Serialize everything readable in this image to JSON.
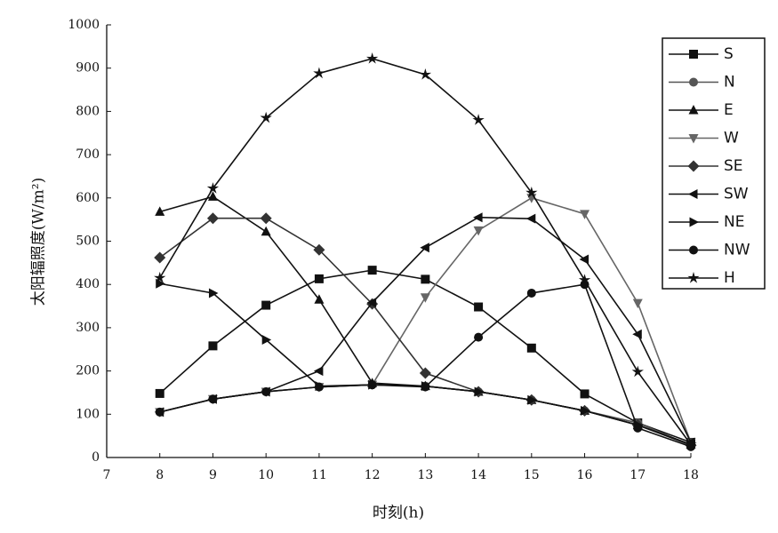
{
  "chart_data": {
    "type": "line",
    "x_label": "时刻(h)",
    "y_label": "太阳辐照度(W/m²)",
    "x": [
      8,
      9,
      10,
      11,
      12,
      13,
      14,
      15,
      16,
      17,
      18
    ],
    "xlim": [
      7,
      18
    ],
    "xticks": [
      7,
      8,
      9,
      10,
      11,
      12,
      13,
      14,
      15,
      16,
      17,
      18
    ],
    "ylim": [
      0,
      1000
    ],
    "yticks": [
      0,
      100,
      200,
      300,
      400,
      500,
      600,
      700,
      800,
      900,
      1000
    ],
    "legend": "upper right",
    "series": [
      {
        "name": "S",
        "color": "#111111",
        "marker": "square",
        "values": [
          148,
          258,
          352,
          413,
          433,
          412,
          348,
          253,
          147,
          80,
          35
        ]
      },
      {
        "name": "N",
        "color": "#555555",
        "marker": "circle",
        "values": [
          105,
          135,
          152,
          163,
          168,
          165,
          152,
          133,
          108,
          80,
          28
        ]
      },
      {
        "name": "E",
        "color": "#111111",
        "marker": "triangle-up",
        "values": [
          568,
          603,
          522,
          365,
          172,
          165,
          152,
          133,
          108,
          75,
          30
        ]
      },
      {
        "name": "W",
        "color": "#666666",
        "marker": "triangle-down",
        "values": [
          105,
          135,
          152,
          163,
          168,
          370,
          525,
          600,
          563,
          357,
          35
        ]
      },
      {
        "name": "SE",
        "color": "#333333",
        "marker": "diamond",
        "values": [
          462,
          553,
          553,
          480,
          355,
          195,
          152,
          133,
          108,
          75,
          28
        ]
      },
      {
        "name": "SW",
        "color": "#111111",
        "marker": "triangle-left",
        "values": [
          105,
          135,
          152,
          200,
          358,
          485,
          555,
          552,
          458,
          285,
          35
        ]
      },
      {
        "name": "NE",
        "color": "#111111",
        "marker": "triangle-right",
        "values": [
          402,
          380,
          272,
          165,
          168,
          165,
          152,
          133,
          108,
          75,
          30
        ]
      },
      {
        "name": "NW",
        "color": "#111111",
        "marker": "circle",
        "values": [
          105,
          135,
          152,
          163,
          168,
          163,
          278,
          380,
          400,
          68,
          25
        ]
      },
      {
        "name": "H",
        "color": "#111111",
        "marker": "star",
        "values": [
          415,
          622,
          785,
          888,
          922,
          885,
          780,
          612,
          410,
          198,
          30
        ]
      }
    ]
  }
}
